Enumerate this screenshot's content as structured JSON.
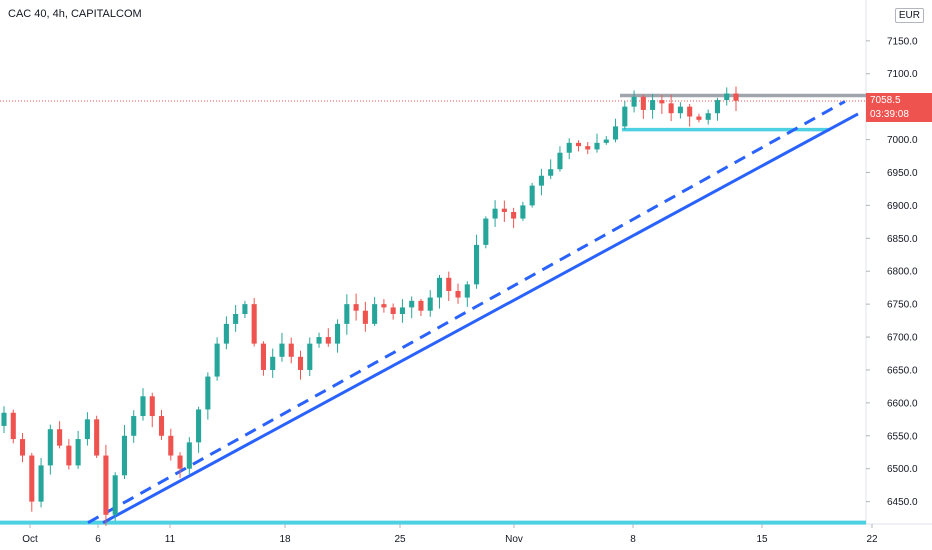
{
  "chart_data": {
    "type": "candlestick",
    "title": "CAC 40, 4h, CAPITALCOM",
    "currency": "EUR",
    "y_ticks": [
      "7150.0",
      "7100.0",
      "7050.0",
      "7000.0",
      "6950.0",
      "6900.0",
      "6850.0",
      "6800.0",
      "6750.0",
      "6700.0",
      "6650.0",
      "6600.0",
      "6550.0",
      "6500.0",
      "6450.0"
    ],
    "x_ticks": [
      "Oct",
      "6",
      "11",
      "18",
      "25",
      "Nov",
      "8",
      "15",
      "22"
    ],
    "ylim": [
      6416,
      7212
    ],
    "last_price": "7058.5",
    "countdown": "03:39:08",
    "colors": {
      "up": "#26a69a",
      "down": "#ef5350",
      "trend": "#2962ff",
      "support": "#4dd0e1",
      "resistance": "#a0a4ad"
    },
    "key_levels": {
      "resistance": 7067,
      "range_support": 7015,
      "base_support": 6418
    },
    "price_path": [
      [
        6565,
        6585
      ],
      [
        6585,
        6545
      ],
      [
        6545,
        6520
      ],
      [
        6520,
        6450
      ],
      [
        6450,
        6505
      ],
      [
        6505,
        6560
      ],
      [
        6560,
        6535
      ],
      [
        6535,
        6505
      ],
      [
        6505,
        6545
      ],
      [
        6545,
        6575
      ],
      [
        6575,
        6520
      ],
      [
        6520,
        6430
      ],
      [
        6430,
        6490
      ],
      [
        6490,
        6550
      ],
      [
        6550,
        6580
      ],
      [
        6580,
        6610
      ],
      [
        6610,
        6580
      ],
      [
        6580,
        6550
      ],
      [
        6550,
        6520
      ],
      [
        6520,
        6500
      ],
      [
        6500,
        6540
      ],
      [
        6540,
        6590
      ],
      [
        6590,
        6640
      ],
      [
        6640,
        6690
      ],
      [
        6690,
        6720
      ],
      [
        6720,
        6735
      ],
      [
        6735,
        6750
      ],
      [
        6750,
        6690
      ],
      [
        6690,
        6650
      ],
      [
        6650,
        6670
      ],
      [
        6670,
        6690
      ],
      [
        6690,
        6670
      ],
      [
        6670,
        6650
      ],
      [
        6650,
        6690
      ],
      [
        6690,
        6700
      ],
      [
        6700,
        6690
      ],
      [
        6690,
        6720
      ],
      [
        6720,
        6750
      ],
      [
        6750,
        6740
      ],
      [
        6740,
        6720
      ],
      [
        6720,
        6750
      ],
      [
        6750,
        6745
      ],
      [
        6745,
        6735
      ],
      [
        6735,
        6745
      ],
      [
        6745,
        6755
      ],
      [
        6755,
        6740
      ],
      [
        6740,
        6760
      ],
      [
        6760,
        6790
      ],
      [
        6790,
        6770
      ],
      [
        6770,
        6760
      ],
      [
        6760,
        6780
      ],
      [
        6780,
        6840
      ],
      [
        6840,
        6880
      ],
      [
        6880,
        6895
      ],
      [
        6895,
        6890
      ],
      [
        6890,
        6880
      ],
      [
        6880,
        6900
      ],
      [
        6900,
        6930
      ],
      [
        6930,
        6945
      ],
      [
        6945,
        6955
      ],
      [
        6955,
        6980
      ],
      [
        6980,
        6995
      ],
      [
        6995,
        6990
      ],
      [
        6990,
        6985
      ],
      [
        6985,
        6995
      ],
      [
        6995,
        7000
      ],
      [
        7000,
        7020
      ],
      [
        7020,
        7050
      ],
      [
        7050,
        7065
      ],
      [
        7065,
        7045
      ],
      [
        7045,
        7060
      ],
      [
        7060,
        7055
      ],
      [
        7055,
        7040
      ],
      [
        7040,
        7050
      ],
      [
        7050,
        7035
      ],
      [
        7035,
        7030
      ],
      [
        7030,
        7040
      ],
      [
        7040,
        7060
      ],
      [
        7060,
        7070
      ],
      [
        7070,
        7059
      ]
    ]
  }
}
